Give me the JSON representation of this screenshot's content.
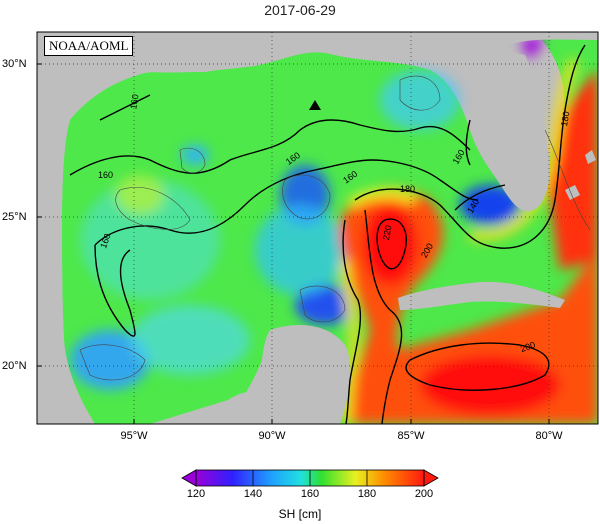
{
  "title": "2017-06-29",
  "credit": "NOAA/AOML",
  "lat_labels": [
    "30°N",
    "25°N",
    "20°N"
  ],
  "lon_labels": [
    "95°W",
    "90°W",
    "85°W",
    "80°W"
  ],
  "contour_labels": [
    "160",
    "160",
    "160",
    "160",
    "160",
    "160",
    "180",
    "180",
    "140",
    "220",
    "200",
    "200"
  ],
  "colorbar": {
    "title": "SH [cm]",
    "tick_labels": [
      "120",
      "140",
      "160",
      "180",
      "200"
    ],
    "min": 120,
    "max": 200
  },
  "colors": {
    "land": "#bebebe",
    "low": "#8a00d4",
    "blue": "#2040ff",
    "cyan": "#20c8ff",
    "green": "#30e030",
    "yellow": "#f0f020",
    "orange": "#ff9000",
    "red": "#ff2010"
  },
  "marker": "triangle-station"
}
